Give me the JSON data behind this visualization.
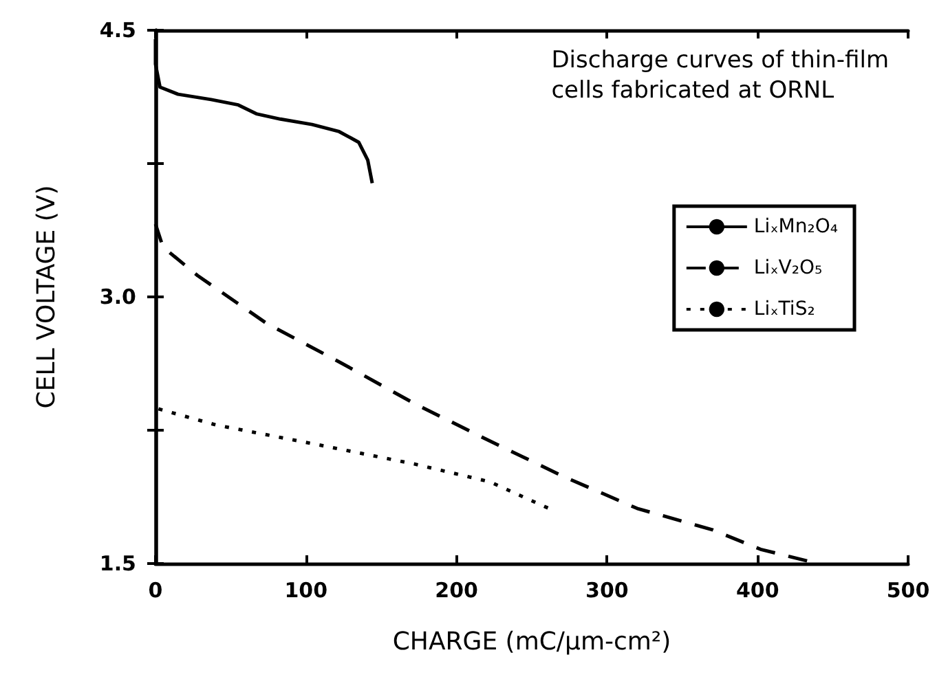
{
  "chart_data": {
    "type": "line",
    "title": "Discharge curves of thin-film\ncells fabricated at ORNL",
    "xlabel": "CHARGE (mC/μm-cm²)",
    "ylabel": "CELL VOLTAGE (V)",
    "xlim": [
      0,
      500
    ],
    "xticks": [
      0,
      100,
      200,
      300,
      400,
      500
    ],
    "ylim": [
      1.5,
      4.5
    ],
    "yticks": [
      1.5,
      {
        "value": 2.25,
        "label": null
      },
      {
        "value": 3,
        "label": "3.0"
      },
      {
        "value": 3.75,
        "label": null
      },
      4.5
    ],
    "grid": false,
    "legend": "right",
    "marker": "none",
    "series": [
      {
        "name": "LiₓMn₂O₄",
        "color": "#000000",
        "line_style": "solid",
        "x": [
          0,
          0,
          3,
          15,
          37,
          55,
          67,
          83,
          104,
          122,
          135,
          141,
          144
        ],
        "values": [
          4.45,
          4.31,
          4.18,
          4.14,
          4.11,
          4.08,
          4.03,
          4.0,
          3.97,
          3.93,
          3.87,
          3.77,
          3.64
        ]
      },
      {
        "name": "LiₓV₂O₅",
        "color": "#000000",
        "line_style": "dashed",
        "x": [
          0,
          5,
          28,
          74,
          123,
          172,
          222,
          271,
          320,
          370,
          402,
          440
        ],
        "values": [
          3.41,
          3.28,
          3.12,
          2.85,
          2.63,
          2.4,
          2.19,
          1.99,
          1.81,
          1.69,
          1.58,
          1.5
        ]
      },
      {
        "name": "LiₓTiS₂",
        "color": "#000000",
        "line_style": "dotted",
        "x": [
          2,
          40,
          107,
          172,
          222,
          264
        ],
        "values": [
          2.37,
          2.28,
          2.17,
          2.06,
          1.96,
          1.8
        ]
      }
    ]
  }
}
